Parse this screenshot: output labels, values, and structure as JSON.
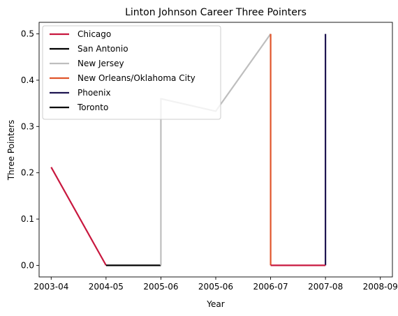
{
  "chart_data": {
    "type": "line",
    "title": "Linton Johnson Career Three Pointers",
    "xlabel": "Year",
    "ylabel": "Three Pointers",
    "x_tick_labels": [
      "2003-04",
      "2004-05",
      "2005-06",
      "2005-06",
      "2006-07",
      "2007-08",
      "2008-09"
    ],
    "y_ticks": [
      0.0,
      0.1,
      0.2,
      0.3,
      0.4,
      0.5
    ],
    "y_tick_labels": [
      "0.0",
      "0.1",
      "0.2",
      "0.3",
      "0.4",
      "0.5"
    ],
    "ylim": [
      -0.025,
      0.525
    ],
    "xlim": [
      -0.22,
      6.22
    ],
    "legend_position": "upper-left",
    "grid": false,
    "series": [
      {
        "name": "Chicago",
        "color": "#c8173e",
        "points": [
          [
            0,
            0.212
          ],
          [
            1,
            0.0
          ]
        ]
      },
      {
        "name": "San Antonio",
        "color": "#000000",
        "points": [
          [
            1,
            0.0
          ],
          [
            2,
            0.0
          ]
        ]
      },
      {
        "name": "New Jersey",
        "color": "#bebebe",
        "points": [
          [
            2,
            0.0
          ],
          [
            2,
            0.36
          ],
          [
            3,
            0.333
          ],
          [
            4,
            0.5
          ]
        ]
      },
      {
        "name": "New Orleans/Oklahoma City",
        "color": "#e0552a",
        "points": [
          [
            4,
            0.5
          ],
          [
            4,
            0.0
          ]
        ]
      },
      {
        "name": "Phoenix",
        "color": "#1e1450",
        "points": [
          [
            5,
            0.5
          ],
          [
            5,
            0.0
          ]
        ]
      },
      {
        "name": "Toronto",
        "color": "#000000",
        "points": []
      },
      {
        "name": "",
        "color": "#c8173e",
        "points": [
          [
            4,
            0.0
          ],
          [
            5,
            0.0
          ]
        ]
      }
    ]
  }
}
